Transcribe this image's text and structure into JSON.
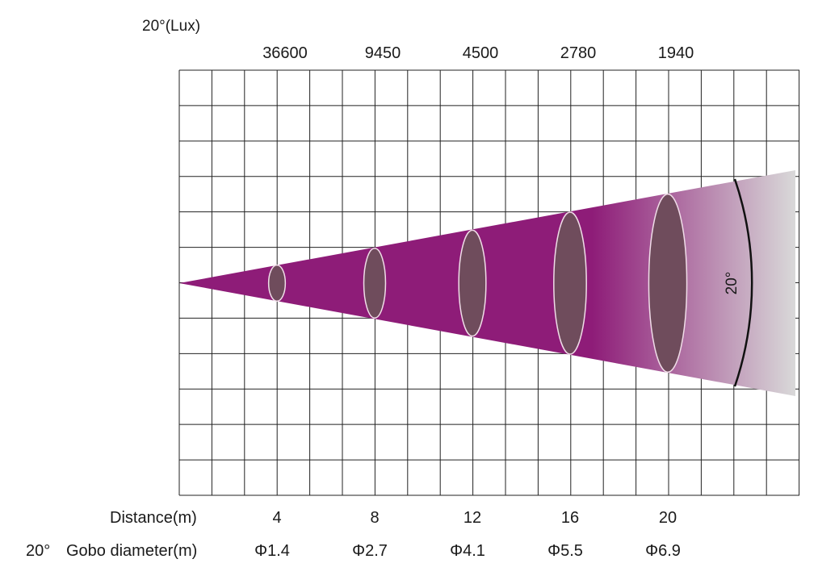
{
  "title": {
    "angle": "20°",
    "unit": "(Lux)"
  },
  "rows": {
    "distance_label": "Distance(m)",
    "diameter_angle": "20°",
    "diameter_label": "Gobo diameter(m)"
  },
  "beam_angle_label": "20°",
  "colors": {
    "beam": "#8e1c78",
    "beam_fade_end": "#d9d9d9",
    "spot_fill": "#6f4c5c",
    "spot_stroke": "#f0dce8",
    "grid": "#222222"
  },
  "chart_data": {
    "type": "beam-diagram",
    "beam_angle_deg": 20,
    "points": [
      {
        "distance": 4,
        "distance_label": "4",
        "lux": 36600,
        "lux_label": "36600",
        "diameter": 1.4,
        "diameter_label": "Φ1.4"
      },
      {
        "distance": 8,
        "distance_label": "8",
        "lux": 9450,
        "lux_label": "9450",
        "diameter": 2.7,
        "diameter_label": "Φ2.7"
      },
      {
        "distance": 12,
        "distance_label": "12",
        "lux": 4500,
        "lux_label": "4500",
        "diameter": 4.1,
        "diameter_label": "Φ4.1"
      },
      {
        "distance": 16,
        "distance_label": "16",
        "lux": 2780,
        "lux_label": "2780",
        "diameter": 5.5,
        "diameter_label": "Φ5.5"
      },
      {
        "distance": 20,
        "distance_label": "20",
        "lux": 1940,
        "lux_label": "1940",
        "diameter": 6.9,
        "diameter_label": "Φ6.9"
      }
    ]
  }
}
